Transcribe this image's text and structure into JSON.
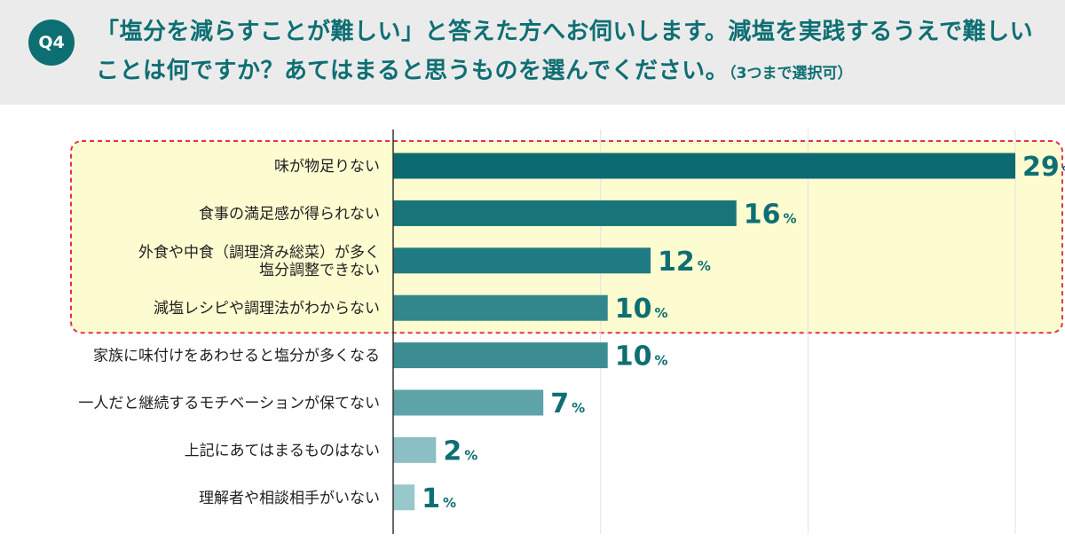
{
  "question": {
    "badge": "Q4",
    "text": "「塩分を減らすことが難しい」と答えた方へお伺いします。減塩を実践するうえで難しいことは何ですか？あてはまると思うものを選んでください。",
    "note": "（3つまで選択可）"
  },
  "chart_data": {
    "type": "bar",
    "orientation": "horizontal",
    "unit": "%",
    "categories": [
      [
        "味が物足りない"
      ],
      [
        "食事の満足感が得られない"
      ],
      [
        "外食や中食（調理済み総菜）が多く",
        "塩分調整できない"
      ],
      [
        "減塩レシピや調理法がわからない"
      ],
      [
        "家族に味付けをあわせると塩分が多くなる"
      ],
      [
        "一人だと継続するモチベーションが保てない"
      ],
      [
        "上記にあてはまるものはない"
      ],
      [
        "理解者や相談相手がいない"
      ]
    ],
    "values": [
      29,
      16,
      12,
      10,
      10,
      7,
      2,
      1
    ],
    "colors": [
      "#0c6b71",
      "#177479",
      "#217b82",
      "#32878c",
      "#3b8d92",
      "#5ea3a8",
      "#8cbfc3",
      "#98c8cb"
    ],
    "xlim": [
      0,
      30
    ],
    "grid": true,
    "highlight": {
      "first": 0,
      "last": 3,
      "fill": "#fdfbd0",
      "border": "#e0344b"
    }
  }
}
